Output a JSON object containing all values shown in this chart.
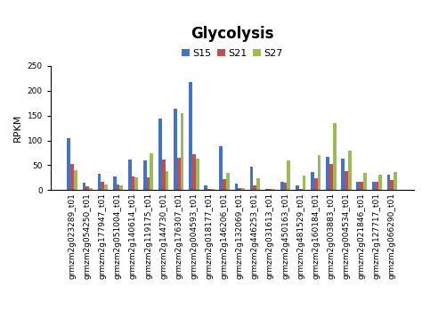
{
  "title": "Glycolysis",
  "ylabel": "RPKM",
  "categories": [
    "grmzm2g023289_t01",
    "grmzm2g054250_t01",
    "grmzm2g177947_t01",
    "grmzm2g051004_t01",
    "grmzm2g140614_t01",
    "grmzm2g119175_t01",
    "grmzm2g144730_t01",
    "grmzm2g176307_t01",
    "grmzm2g004593_t01",
    "grmzm2g018177_t01",
    "grmzm2g146206_t01",
    "grmzm2g132069_t01",
    "grmzm2g446253_t01",
    "grmzm2g031613_t01",
    "grmzm2g450163_t01",
    "grmzm2g481529_t01",
    "grmzm2g160184_t01",
    "grmzm2g003883_t01",
    "grmzm2g004534_t01",
    "grmzm2g021846_t01",
    "grmzm2g127717_t01",
    "grmzm2g066290_t01"
  ],
  "S15": [
    105,
    15,
    33,
    27,
    62,
    60,
    143,
    163,
    217,
    9,
    88,
    14,
    47,
    3,
    16,
    10,
    37,
    67,
    64,
    17,
    16,
    31
  ],
  "S21": [
    53,
    8,
    16,
    12,
    27,
    26,
    62,
    65,
    72,
    3,
    22,
    4,
    10,
    3,
    15,
    3,
    24,
    52,
    38,
    17,
    16,
    20
  ],
  "S27": [
    40,
    5,
    11,
    10,
    25,
    74,
    38,
    155,
    63,
    2,
    34,
    4,
    24,
    2,
    60,
    30,
    70,
    135,
    80,
    34,
    31,
    36
  ],
  "colors": {
    "S15": "#4472C4",
    "S21": "#C0504D",
    "S27": "#9BBB59"
  },
  "ylim": [
    0,
    250
  ],
  "yticks": [
    0,
    50,
    100,
    150,
    200,
    250
  ],
  "bar_width": 0.22,
  "title_fontsize": 12,
  "axis_label_fontsize": 8,
  "tick_fontsize": 6.5,
  "legend_fontsize": 8,
  "background_color": "#FFFFFF"
}
